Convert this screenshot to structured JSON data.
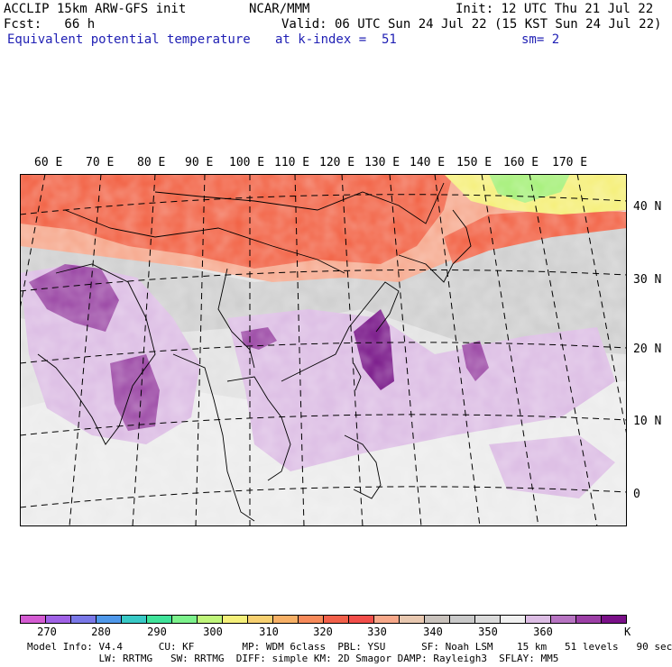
{
  "header": {
    "model": "ACCLIP 15km ARW-GFS init",
    "org": "NCAR/MMM",
    "init": "Init: 12 UTC Thu 21 Jul 22",
    "fcst": "Fcst:   66 h",
    "valid": "Valid: 06 UTC Sun 24 Jul 22 (15 KST Sun 24 Jul 22)",
    "field": "Equivalent potential temperature",
    "level": "at k-index =  51",
    "smooth": "sm= 2"
  },
  "map": {
    "lon_labels": [
      "60 E",
      "70 E",
      "80 E",
      "90 E",
      "100 E",
      "110 E",
      "120 E",
      "130 E",
      "140 E",
      "150 E",
      "160 E",
      "170 E"
    ],
    "lat_labels": [
      "40 N",
      "30 N",
      "20 N",
      "10 N",
      "0"
    ],
    "colors": {
      "orange_red": "#f26646",
      "salmon": "#f7a88a",
      "light_gray": "#d6d6d6",
      "lighter_gray": "#e8e8e8",
      "white": "#f6f6f6",
      "lavender": "#dcbde4",
      "purple": "#9c4aa6",
      "dark_purple": "#7a1a8a",
      "yellow": "#f5f07a",
      "green": "#a6f07a"
    }
  },
  "legend": {
    "colors": [
      "#d45bd2",
      "#a062e6",
      "#7a78e8",
      "#4f98ea",
      "#38c9c6",
      "#3fe39a",
      "#7cf28c",
      "#bff57a",
      "#f5f07a",
      "#f7d070",
      "#f7b066",
      "#f78a5a",
      "#f2604a",
      "#f24e4a",
      "#f7a88a",
      "#e8c8b0",
      "#c9c2bc",
      "#c9c9c9",
      "#dadada",
      "#f0f0f0",
      "#dcbde4",
      "#b774c2",
      "#9c3fa6",
      "#7a1088"
    ],
    "ticks": [
      "270",
      "280",
      "290",
      "300",
      "310",
      "320",
      "330",
      "340",
      "350",
      "360"
    ],
    "unit": "K"
  },
  "info": {
    "line1": "Model Info: V4.4      CU: KF        MP: WDM 6class  PBL: YSU      SF: Noah LSM    15 km   51 levels   90 sec",
    "line2": "            LW: RRTMG   SW: RRTMG  DIFF: simple KM: 2D Smagor DAMP: Rayleigh3  SFLAY: MM5"
  }
}
